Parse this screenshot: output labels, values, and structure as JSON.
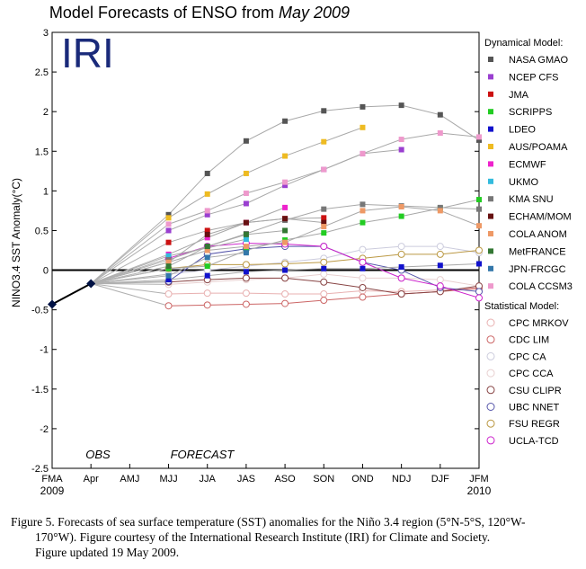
{
  "logo_text": "IRI",
  "caption": {
    "line1": "Figure 5. Forecasts of sea surface temperature (SST) anomalies for the Niño 3.4 region (5°N-5°S, 120°W-",
    "line2": "170°W).  Figure courtesy of the International Research Institute (IRI) for Climate and Society.",
    "line3": "Figure updated 19 May 2009."
  },
  "chart_data": {
    "type": "line",
    "title": "Model Forecasts of ENSO from",
    "title_date": "May 2009",
    "ylabel": "NINO3.4 SST Anomaly(°C)",
    "ylim": [
      -2.5,
      3
    ],
    "yticks": [
      -2.5,
      -2,
      -1.5,
      -1,
      -0.5,
      0,
      0.5,
      1,
      1.5,
      2,
      2.5,
      3
    ],
    "categories": [
      "FMA",
      "Apr",
      "AMJ",
      "MJJ",
      "JJA",
      "JAS",
      "ASO",
      "SON",
      "OND",
      "NDJ",
      "DJF",
      "JFM"
    ],
    "year_start": "2009",
    "year_end": "2010",
    "annotations": [
      "OBS",
      "FORECAST"
    ],
    "observed": {
      "x": [
        "FMA",
        "Apr"
      ],
      "values": [
        -0.43,
        -0.17
      ]
    },
    "legend_dynamical_title": "Dynamical Model:",
    "legend_statistical_title": "Statistical Model:",
    "dynamical": [
      {
        "name": "NASA GMAO",
        "color": "#555555",
        "values": [
          0.7,
          1.22,
          1.63,
          1.88,
          2.01,
          2.06,
          2.08,
          1.96,
          1.64
        ]
      },
      {
        "name": "NCEP CFS",
        "color": "#9a3fd0",
        "values": [
          0.5,
          0.7,
          0.84,
          1.07,
          1.27,
          1.47,
          1.52,
          null,
          null
        ]
      },
      {
        "name": "JMA",
        "color": "#cc1111",
        "values": [
          0.35,
          0.5,
          0.6,
          0.65,
          0.66,
          null,
          null,
          null,
          null
        ]
      },
      {
        "name": "SCRIPPS",
        "color": "#22cc22",
        "values": [
          0.02,
          0.05,
          0.25,
          0.38,
          0.47,
          0.6,
          0.68,
          0.78,
          0.89
        ]
      },
      {
        "name": "LDEO",
        "color": "#1111cc",
        "values": [
          -0.12,
          -0.07,
          -0.02,
          0.0,
          0.02,
          0.02,
          0.04,
          0.06,
          0.08
        ]
      },
      {
        "name": "AUS/POAMA",
        "color": "#eebb22",
        "values": [
          0.66,
          0.96,
          1.22,
          1.44,
          1.62,
          1.8,
          null,
          null,
          null
        ]
      },
      {
        "name": "ECMWF",
        "color": "#ee22cc",
        "values": [
          0.2,
          0.41,
          0.6,
          0.79,
          null,
          null,
          null,
          null,
          null
        ]
      },
      {
        "name": "UKMO",
        "color": "#33bbdd",
        "values": [
          0.18,
          0.28,
          0.39,
          null,
          null,
          null,
          null,
          null,
          null
        ]
      },
      {
        "name": "KMA SNU",
        "color": "#777777",
        "values": [
          0.13,
          0.3,
          0.46,
          0.63,
          0.77,
          0.83,
          0.81,
          0.79,
          0.77
        ]
      },
      {
        "name": "ECHAM/MOM",
        "color": "#661111",
        "values": [
          0.1,
          0.45,
          0.6,
          0.65,
          0.6,
          null,
          null,
          null,
          null
        ]
      },
      {
        "name": "COLA ANOM",
        "color": "#ee9966",
        "values": [
          0.1,
          0.25,
          0.3,
          0.35,
          0.55,
          0.75,
          0.8,
          0.75,
          0.56
        ]
      },
      {
        "name": "MetFRANCE",
        "color": "#337733",
        "values": [
          0.05,
          0.3,
          0.45,
          0.5,
          null,
          null,
          null,
          null,
          null
        ]
      },
      {
        "name": "JPN-FRCGC",
        "color": "#3377aa",
        "values": [
          -0.07,
          0.16,
          0.22,
          null,
          null,
          null,
          null,
          null,
          null
        ]
      },
      {
        "name": "COLA CCSM3",
        "color": "#ee99cc",
        "values": [
          0.58,
          0.75,
          0.97,
          1.11,
          1.27,
          1.47,
          1.65,
          1.73,
          1.68
        ]
      }
    ],
    "statistical": [
      {
        "name": "CPC MRKOV",
        "color": "#e8b0b0",
        "values": [
          -0.3,
          -0.29,
          -0.29,
          -0.3,
          -0.3,
          -0.26,
          -0.27,
          -0.25,
          -0.22
        ]
      },
      {
        "name": "CDC LIM",
        "color": "#cc6666",
        "values": [
          -0.45,
          -0.44,
          -0.43,
          -0.42,
          -0.38,
          -0.34,
          -0.3,
          -0.27,
          -0.23
        ]
      },
      {
        "name": "CPC CA",
        "color": "#ccccdd",
        "values": [
          -0.05,
          0.0,
          0.05,
          0.1,
          0.15,
          0.26,
          0.3,
          0.3,
          0.22
        ]
      },
      {
        "name": "CPC CCA",
        "color": "#e8d0d0",
        "values": [
          -0.18,
          -0.15,
          -0.12,
          -0.1,
          -0.05,
          -0.1,
          -0.1,
          -0.12,
          -0.2
        ]
      },
      {
        "name": "CSU CLIPR",
        "color": "#884444",
        "values": [
          -0.15,
          -0.12,
          -0.1,
          -0.1,
          -0.15,
          -0.22,
          -0.3,
          -0.27,
          -0.2
        ]
      },
      {
        "name": "UBC NNET",
        "color": "#5555aa",
        "values": [
          -0.14,
          0.2,
          0.27,
          0.3,
          0.3,
          0.1,
          0.0,
          -0.22,
          -0.27
        ]
      },
      {
        "name": "FSU REGR",
        "color": "#bb9944",
        "values": [
          0.02,
          0.07,
          0.07,
          0.08,
          0.1,
          0.15,
          0.2,
          0.2,
          0.25
        ]
      },
      {
        "name": "UCLA-TCD",
        "color": "#cc22cc",
        "values": [
          0.15,
          0.3,
          0.34,
          0.33,
          0.3,
          0.1,
          -0.1,
          -0.2,
          -0.35
        ]
      }
    ]
  }
}
